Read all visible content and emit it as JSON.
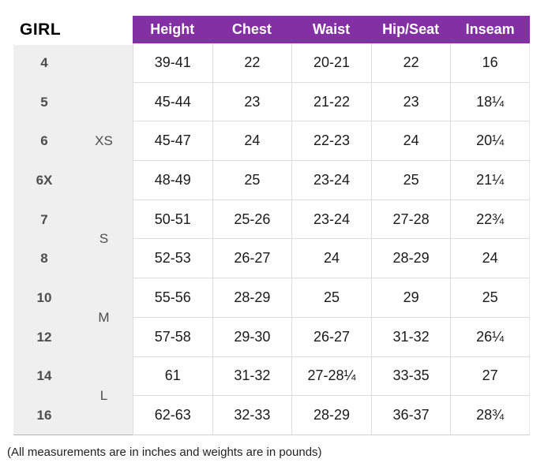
{
  "title": "GIRL",
  "footnote": "(All measurements are in inches and weights are in pounds)",
  "colors": {
    "header_bg": "#8230A3",
    "header_text": "#FFFFFF",
    "side_column_bg": "#EFEFEF",
    "grid_line": "#DCDCDC",
    "body_text": "#1A1A1A",
    "side_text": "#4D4D4D"
  },
  "chart_data": {
    "type": "table",
    "title": "GIRL",
    "columns": [
      "Height",
      "Chest",
      "Waist",
      "Hip/Seat",
      "Inseam"
    ],
    "size_groups": [
      {
        "label": "",
        "span": 1
      },
      {
        "label": "XS",
        "span": 3
      },
      {
        "label": "S",
        "span": 2
      },
      {
        "label": "M",
        "span": 2
      },
      {
        "label": "L",
        "span": 2
      }
    ],
    "rows": [
      {
        "size": "4",
        "height": "39-41",
        "chest": "22",
        "waist": "20-21",
        "hip_seat": "22",
        "inseam": "16"
      },
      {
        "size": "5",
        "height": "45-44",
        "chest": "23",
        "waist": "21-22",
        "hip_seat": "23",
        "inseam": "18¼"
      },
      {
        "size": "6",
        "height": "45-47",
        "chest": "24",
        "waist": "22-23",
        "hip_seat": "24",
        "inseam": "20¼"
      },
      {
        "size": "6X",
        "height": "48-49",
        "chest": "25",
        "waist": "23-24",
        "hip_seat": "25",
        "inseam": "21¼"
      },
      {
        "size": "7",
        "height": "50-51",
        "chest": "25-26",
        "waist": "23-24",
        "hip_seat": "27-28",
        "inseam": "22¾"
      },
      {
        "size": "8",
        "height": "52-53",
        "chest": "26-27",
        "waist": "24",
        "hip_seat": "28-29",
        "inseam": "24"
      },
      {
        "size": "10",
        "height": "55-56",
        "chest": "28-29",
        "waist": "25",
        "hip_seat": "29",
        "inseam": "25"
      },
      {
        "size": "12",
        "height": "57-58",
        "chest": "29-30",
        "waist": "26-27",
        "hip_seat": "31-32",
        "inseam": "26¼"
      },
      {
        "size": "14",
        "height": "61",
        "chest": "31-32",
        "waist": "27-28¼",
        "hip_seat": "33-35",
        "inseam": "27"
      },
      {
        "size": "16",
        "height": "62-63",
        "chest": "32-33",
        "waist": "28-29",
        "hip_seat": "36-37",
        "inseam": "28¾"
      }
    ]
  }
}
